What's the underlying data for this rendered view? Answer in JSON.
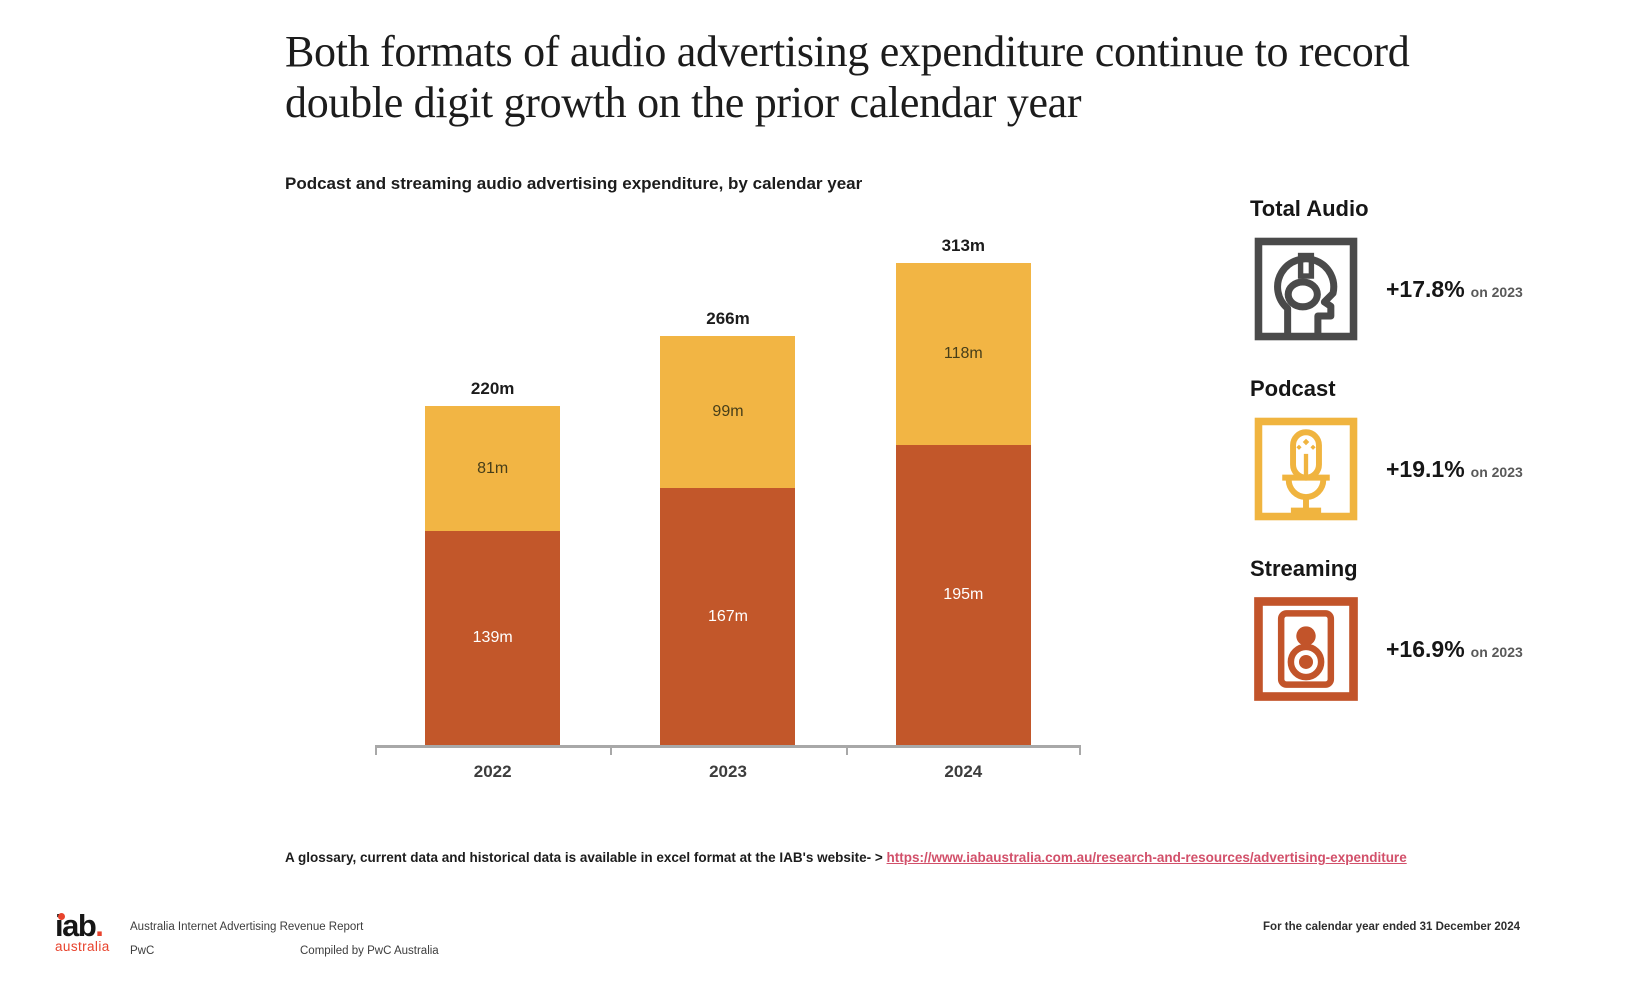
{
  "title": "Both formats of audio advertising expenditure continue to record double digit growth on the prior calendar year",
  "chart_data": {
    "type": "bar",
    "stacked": true,
    "title": "Podcast and streaming audio advertising expenditure, by calendar year",
    "categories": [
      "2022",
      "2023",
      "2024"
    ],
    "series": [
      {
        "name": "Streaming",
        "color": "#c2572a",
        "label_color": "#ffffff",
        "values": [
          139,
          167,
          195
        ],
        "labels": [
          "139m",
          "167m",
          "195m"
        ]
      },
      {
        "name": "Podcast",
        "color": "#f2b544",
        "label_color": "#473e19",
        "values": [
          81,
          99,
          118
        ],
        "labels": [
          "81m",
          "99m",
          "118m"
        ]
      }
    ],
    "totals": [
      220,
      266,
      313
    ],
    "total_labels": [
      "220m",
      "266m",
      "313m"
    ],
    "ylim": [
      0,
      335
    ],
    "grid": false,
    "legend_position": "right-panel"
  },
  "stats": [
    {
      "heading": "Total Audio",
      "icon": "head-headphones-icon",
      "value": "+17.8%",
      "suffix": "on 2023",
      "color": "#4a4a4a"
    },
    {
      "heading": "Podcast",
      "icon": "microphone-icon",
      "value": "+19.1%",
      "suffix": "on 2023",
      "color": "#f0b43f"
    },
    {
      "heading": "Streaming",
      "icon": "speaker-icon",
      "value": "+16.9%",
      "suffix": "on 2023",
      "color": "#c2542a"
    }
  ],
  "note": {
    "text": "A glossary, current data and historical data is available in excel format at the IAB's website- > ",
    "link": "https://www.iabaustralia.com.au/research-and-resources/advertising-expenditure"
  },
  "footer": {
    "logo_main": "iab",
    "logo_dot": ".",
    "logo_sub": "australia",
    "report": "Australia Internet Advertising Revenue Report",
    "pwc": "PwC",
    "compiled": "Compiled by PwC Australia",
    "period": "For the calendar year ended 31 December 2024"
  }
}
